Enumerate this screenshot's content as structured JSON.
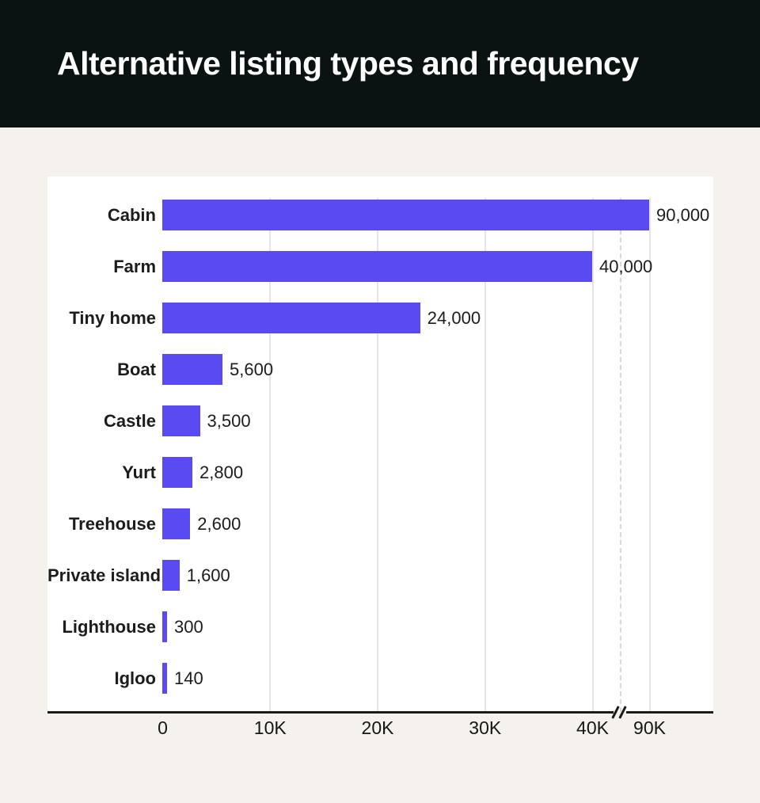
{
  "header": {
    "title": "Alternative listing types and frequency"
  },
  "chart_data": {
    "type": "bar",
    "orientation": "horizontal",
    "title": "Alternative listing types and frequency",
    "categories": [
      "Cabin",
      "Farm",
      "Tiny home",
      "Boat",
      "Castle",
      "Yurt",
      "Treehouse",
      "Private island",
      "Lighthouse",
      "Igloo"
    ],
    "values": [
      90000,
      40000,
      24000,
      5600,
      3500,
      2800,
      2600,
      1600,
      300,
      140
    ],
    "value_labels": [
      "90,000",
      "40,000",
      "24,000",
      "5,600",
      "3,500",
      "2,800",
      "2,600",
      "1,600",
      "300",
      "140"
    ],
    "x_ticks": [
      {
        "label": "0",
        "value": 0
      },
      {
        "label": "10K",
        "value": 10000
      },
      {
        "label": "20K",
        "value": 20000
      },
      {
        "label": "30K",
        "value": 30000
      },
      {
        "label": "40K",
        "value": 40000
      },
      {
        "label": "90K",
        "value": 90000
      }
    ],
    "axis_break": {
      "after_value": 40000,
      "before_value": 90000,
      "symbol": "//"
    },
    "xlabel": "",
    "ylabel": "",
    "grid": "vertical",
    "legend": "none",
    "bar_color": "#594BF1",
    "colors": {
      "header_bg": "#0B1212",
      "page_bg": "#F5F2ED",
      "card_bg": "#FFFFFF",
      "gridline": "#E7E5E2",
      "dashed_gridline": "#DBD8D4",
      "axis_line": "#1B1B1B",
      "text": "#1C1C1C"
    }
  }
}
